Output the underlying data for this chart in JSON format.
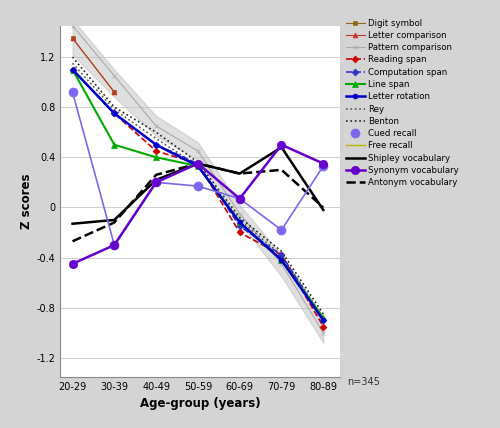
{
  "age_groups": [
    "20-29",
    "30-39",
    "40-49",
    "50-59",
    "60-69",
    "70-79",
    "80-89"
  ],
  "x": [
    0,
    1,
    2,
    3,
    4,
    5,
    6
  ],
  "series": {
    "digit_symbol": {
      "values": [
        1.35,
        0.92,
        null,
        null,
        null,
        null,
        null
      ],
      "color": "#8B6914",
      "marker": "s",
      "markersize": 3.5,
      "linestyle": "-",
      "linewidth": 0.8,
      "label": "Digit symbol",
      "zorder": 3
    },
    "letter_comparison": {
      "values": [
        1.35,
        0.92,
        null,
        null,
        null,
        null,
        null
      ],
      "color": "#c0392b",
      "marker": "^",
      "markersize": 3.5,
      "linestyle": "-",
      "linewidth": 0.8,
      "label": "Letter comparison",
      "zorder": 3
    },
    "pattern_comparison": {
      "values": [
        1.45,
        1.05,
        0.65,
        0.45,
        -0.05,
        -0.45,
        -1.0
      ],
      "color": "#aaaaaa",
      "marker": "x",
      "markersize": 3.5,
      "linestyle": "-",
      "linewidth": 0.8,
      "label": "Pattern comparison",
      "zorder": 2
    },
    "reading_span": {
      "values": [
        1.1,
        0.75,
        0.45,
        0.35,
        -0.2,
        -0.38,
        -0.95
      ],
      "color": "#cc0000",
      "marker": "D",
      "markersize": 3.5,
      "linestyle": "--",
      "linewidth": 1.2,
      "label": "Reading span",
      "zorder": 4
    },
    "computation_span": {
      "values": [
        1.1,
        0.75,
        0.5,
        0.35,
        -0.15,
        -0.38,
        -0.9
      ],
      "color": "#3333cc",
      "marker": "D",
      "markersize": 3.5,
      "linestyle": "--",
      "linewidth": 1.2,
      "label": "Computation span",
      "zorder": 4
    },
    "line_span": {
      "values": [
        1.1,
        0.5,
        0.4,
        0.33,
        -0.12,
        -0.42,
        -0.88
      ],
      "color": "#00aa00",
      "marker": "^",
      "markersize": 4.5,
      "linestyle": "-",
      "linewidth": 1.5,
      "label": "Line span",
      "zorder": 5
    },
    "letter_rotation": {
      "values": [
        1.1,
        0.75,
        0.5,
        0.33,
        -0.12,
        -0.42,
        -0.9
      ],
      "color": "#0000cc",
      "marker": "o",
      "markersize": 3.5,
      "linestyle": "-",
      "linewidth": 1.8,
      "label": "Letter rotation",
      "zorder": 5
    },
    "rey": {
      "values": [
        1.15,
        0.78,
        0.55,
        0.33,
        -0.1,
        -0.38,
        -0.88
      ],
      "color": "#555555",
      "marker": null,
      "markersize": 0,
      "linestyle": ":",
      "linewidth": 1.2,
      "label": "Rey",
      "zorder": 3
    },
    "benton": {
      "values": [
        1.2,
        0.8,
        0.6,
        0.36,
        -0.08,
        -0.35,
        -0.85
      ],
      "color": "#222222",
      "marker": null,
      "markersize": 0,
      "linestyle": ":",
      "linewidth": 1.2,
      "label": "Benton",
      "zorder": 3
    },
    "cued_recall": {
      "values": [
        0.92,
        -0.3,
        0.2,
        0.17,
        0.07,
        -0.18,
        0.33
      ],
      "color": "#7b68ee",
      "marker": "o",
      "markersize": 6.5,
      "linestyle": "-",
      "linewidth": 1.2,
      "label": "Cued recall",
      "zorder": 6
    },
    "free_recall": {
      "values": [
        1.1,
        0.75,
        0.5,
        0.33,
        -0.12,
        -0.42,
        -0.9
      ],
      "color": "#b8b800",
      "marker": null,
      "markersize": 0,
      "linestyle": "-",
      "linewidth": 1.0,
      "label": "Free recall",
      "zorder": 3
    },
    "shipley_vocab": {
      "values": [
        -0.13,
        -0.1,
        0.22,
        0.35,
        0.27,
        0.48,
        -0.02
      ],
      "color": "#000000",
      "marker": null,
      "markersize": 0,
      "linestyle": "-",
      "linewidth": 1.8,
      "label": "Shipley vocabulary",
      "zorder": 4
    },
    "synonym_vocab": {
      "values": [
        -0.45,
        -0.3,
        0.2,
        0.35,
        0.07,
        0.5,
        0.35
      ],
      "color": "#6600cc",
      "marker": "o",
      "markersize": 6,
      "linestyle": "-",
      "linewidth": 1.8,
      "label": "Synonym vocabulary",
      "zorder": 6
    },
    "antonym_vocab": {
      "values": [
        -0.27,
        -0.12,
        0.26,
        0.35,
        0.27,
        0.3,
        0.0
      ],
      "color": "#000000",
      "marker": null,
      "markersize": 0,
      "linestyle": "--",
      "linewidth": 1.8,
      "label": "Antonym vocabulary",
      "zorder": 4
    }
  },
  "speed_band_upper": [
    1.5,
    1.1,
    0.73,
    0.52,
    0.02,
    -0.38,
    -0.88
  ],
  "speed_band_lower": [
    1.22,
    0.88,
    0.57,
    0.38,
    -0.12,
    -0.55,
    -1.08
  ],
  "xlabel": "Age-group (years)",
  "ylabel": "Z scores",
  "ylim": [
    -1.35,
    1.45
  ],
  "yticks": [
    -1.2,
    -0.8,
    -0.4,
    0.0,
    0.4,
    0.8,
    1.2
  ],
  "background_color": "#d4d4d4",
  "plot_bg_color": "#ffffff",
  "n_text": "n=345",
  "legend_entries": [
    {
      "label": "Digit symbol",
      "color": "#8B6914",
      "marker": "s",
      "ms": 3.5,
      "ls": "-",
      "lw": 0.8
    },
    {
      "label": "Letter comparison",
      "color": "#c0392b",
      "marker": "^",
      "ms": 3.5,
      "ls": "-",
      "lw": 0.8
    },
    {
      "label": "Pattern comparison",
      "color": "#aaaaaa",
      "marker": "x",
      "ms": 3.5,
      "ls": "-",
      "lw": 0.8
    },
    {
      "label": "Reading span",
      "color": "#cc0000",
      "marker": "D",
      "ms": 3.5,
      "ls": "--",
      "lw": 1.2
    },
    {
      "label": "Computation span",
      "color": "#3333cc",
      "marker": "D",
      "ms": 3.5,
      "ls": "--",
      "lw": 1.2
    },
    {
      "label": "Line span",
      "color": "#00aa00",
      "marker": "^",
      "ms": 4.5,
      "ls": "-",
      "lw": 1.5
    },
    {
      "label": "Letter rotation",
      "color": "#0000cc",
      "marker": "o",
      "ms": 3.5,
      "ls": "-",
      "lw": 1.8
    },
    {
      "label": "Rey",
      "color": "#555555",
      "marker": "None",
      "ms": 0,
      "ls": ":",
      "lw": 1.2
    },
    {
      "label": "Benton",
      "color": "#222222",
      "marker": "None",
      "ms": 0,
      "ls": ":",
      "lw": 1.2
    },
    {
      "label": "Cued recall",
      "color": "#7b68ee",
      "marker": "o",
      "ms": 6.5,
      "ls": "-",
      "lw": 0.0
    },
    {
      "label": "Free recall",
      "color": "#b8b800",
      "marker": "None",
      "ms": 0,
      "ls": "-",
      "lw": 1.0
    },
    {
      "label": "Shipley vocabulary",
      "color": "#000000",
      "marker": "None",
      "ms": 0,
      "ls": "-",
      "lw": 1.8
    },
    {
      "label": "Synonym vocabulary",
      "color": "#6600cc",
      "marker": "o",
      "ms": 6,
      "ls": "-",
      "lw": 1.8
    },
    {
      "label": "Antonym vocabulary",
      "color": "#000000",
      "marker": "None",
      "ms": 0,
      "ls": "--",
      "lw": 1.8
    }
  ]
}
